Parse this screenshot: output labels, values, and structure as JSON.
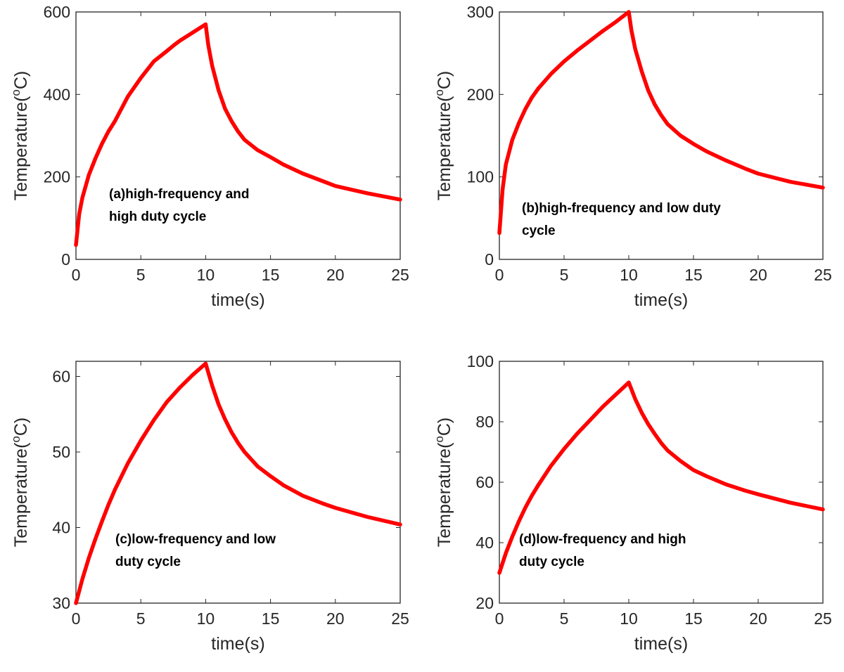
{
  "chart_data": [
    {
      "type": "line",
      "panel": "a",
      "xlabel": "time(s)",
      "ylabel": "Temperature(oC)",
      "xlim": [
        0,
        25
      ],
      "ylim": [
        0,
        600
      ],
      "xticks": [
        0,
        5,
        10,
        15,
        20,
        25
      ],
      "yticks": [
        0,
        200,
        400,
        600
      ],
      "annotation": [
        "(a)high-frequency and",
        "high duty cycle"
      ],
      "color": "#ff0000",
      "x": [
        0,
        0.25,
        0.5,
        1,
        1.5,
        2,
        2.5,
        3,
        4,
        5,
        6,
        7,
        7.5,
        8,
        9,
        10,
        10.2,
        10.5,
        11,
        11.5,
        12,
        12.5,
        13,
        14,
        15,
        16,
        17.5,
        19,
        20,
        22.5,
        25
      ],
      "y": [
        35,
        110,
        150,
        205,
        245,
        280,
        310,
        335,
        395,
        440,
        480,
        505,
        518,
        530,
        550,
        570,
        520,
        470,
        410,
        365,
        335,
        310,
        290,
        265,
        248,
        230,
        208,
        190,
        178,
        160,
        145
      ]
    },
    {
      "type": "line",
      "panel": "b",
      "xlabel": "time(s)",
      "ylabel": "Temperature(oC)",
      "xlim": [
        0,
        25
      ],
      "ylim": [
        0,
        300
      ],
      "xticks": [
        0,
        5,
        10,
        15,
        20,
        25
      ],
      "yticks": [
        0,
        100,
        200,
        300
      ],
      "annotation": [
        "(b)high-frequency and low  duty",
        "cycle"
      ],
      "color": "#ff0000",
      "x": [
        0,
        0.25,
        0.5,
        1,
        1.5,
        2,
        2.5,
        3,
        4,
        5,
        6,
        7,
        7.5,
        8,
        9,
        10,
        10.2,
        10.5,
        11,
        11.5,
        12,
        12.5,
        13,
        14,
        15,
        16,
        17.5,
        19,
        20,
        22.5,
        25
      ],
      "y": [
        32,
        85,
        115,
        145,
        165,
        182,
        196,
        207,
        225,
        240,
        253,
        265,
        271,
        277,
        288,
        300,
        278,
        255,
        228,
        205,
        188,
        175,
        164,
        150,
        140,
        131,
        120,
        110,
        104,
        94,
        87
      ]
    },
    {
      "type": "line",
      "panel": "c",
      "xlabel": "time(s)",
      "ylabel": "Temperature(oC)",
      "xlim": [
        0,
        25
      ],
      "ylim": [
        30,
        62
      ],
      "xticks": [
        0,
        5,
        10,
        15,
        20,
        25
      ],
      "yticks": [
        30,
        40,
        50,
        60
      ],
      "annotation": [
        "(c)low-frequency and low",
        "duty cycle"
      ],
      "color": "#ff0000",
      "x": [
        0,
        0.5,
        1,
        1.5,
        2,
        2.5,
        3,
        4,
        5,
        6,
        7,
        8,
        9,
        10,
        10.5,
        11,
        11.5,
        12,
        12.5,
        13,
        14,
        15,
        16,
        17.5,
        19,
        20,
        22.5,
        25
      ],
      "y": [
        30,
        33.2,
        36,
        38.5,
        40.8,
        43,
        45,
        48.5,
        51.5,
        54.2,
        56.6,
        58.5,
        60.2,
        61.7,
        58.8,
        56.3,
        54.3,
        52.6,
        51.2,
        50,
        48.1,
        46.8,
        45.6,
        44.2,
        43.2,
        42.6,
        41.4,
        40.4
      ]
    },
    {
      "type": "line",
      "panel": "d",
      "xlabel": "time(s)",
      "ylabel": "Temperature(oC)",
      "xlim": [
        0,
        25
      ],
      "ylim": [
        20,
        100
      ],
      "xticks": [
        0,
        5,
        10,
        15,
        20,
        25
      ],
      "yticks": [
        20,
        40,
        60,
        80,
        100
      ],
      "annotation": [
        "(d)low-frequency and high",
        "duty cycle"
      ],
      "color": "#ff0000",
      "x": [
        0,
        0.5,
        1,
        1.5,
        2,
        2.5,
        3,
        4,
        5,
        6,
        7,
        8,
        9,
        10,
        10.5,
        11,
        11.5,
        12,
        12.5,
        13,
        14,
        15,
        16,
        17.5,
        19,
        20,
        22.5,
        25
      ],
      "y": [
        30,
        36.5,
        42,
        47,
        51.5,
        55.5,
        59,
        65.5,
        71,
        76,
        80.5,
        85,
        89,
        93,
        87.5,
        83,
        79.2,
        76,
        73,
        70.5,
        67,
        64,
        62,
        59.3,
        57.2,
        56,
        53.2,
        51
      ]
    }
  ]
}
